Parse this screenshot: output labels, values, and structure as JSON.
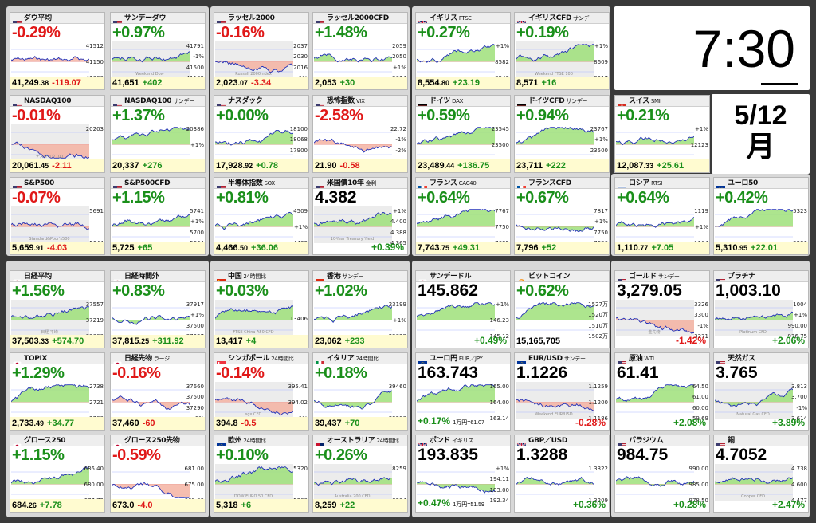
{
  "clock": {
    "time": "7:30",
    "date": "5/12",
    "weekday": "月"
  },
  "colors": {
    "up": "#1a8f1a",
    "down": "#e01818"
  },
  "cards": [
    {
      "id": "dow",
      "flag": "us",
      "name": "ダウ平均",
      "sub": "",
      "pct": "-0.29%",
      "dir": "dn",
      "price": "41,249",
      "dec": ".38",
      "chg": "-119.07",
      "axis": [
        "41512",
        "41150",
        "41000"
      ],
      "wm": ""
    },
    {
      "id": "dowf",
      "flag": "us",
      "name": "サンデーダウ",
      "sub": "",
      "pct": "+0.97%",
      "dir": "up",
      "price": "41,651",
      "dec": "",
      "chg": "+402",
      "axis": [
        "41791",
        "-1%",
        "41500",
        "41102"
      ],
      "wm": "Weekend Dow"
    },
    {
      "id": "rut",
      "flag": "us",
      "name": "ラッセル2000",
      "sub": "",
      "pct": "-0.16%",
      "dir": "dn",
      "price": "2,023",
      ".07": "",
      "dec": ".07",
      "chg": "-3.34",
      "axis": [
        "2037",
        "2030",
        "2016",
        "-1%"
      ],
      "wm": "Russell 2000Index"
    },
    {
      "id": "rutf",
      "flag": "us",
      "name": "ラッセル2000CFD",
      "sub": "",
      "pct": "+1.48%",
      "dir": "up",
      "price": "2,053",
      "dec": "",
      "chg": "+30",
      "axis": [
        "2059",
        "2050",
        "+1%",
        "2014"
      ],
      "wm": ""
    },
    {
      "id": "ftse",
      "flag": "uk",
      "name": "イギリス",
      "sub": "FTSE",
      "pct": "+0.27%",
      "dir": "up",
      "price": "8,554",
      "dec": ".80",
      "chg": "+23.19",
      "axis": [
        "+1%",
        "8582",
        "8543"
      ],
      "wm": ""
    },
    {
      "id": "ftsef",
      "flag": "uk",
      "name": "イギリスCFD",
      "sub": "サンデー",
      "pct": "+0.19%",
      "dir": "up",
      "price": "8,571",
      "dec": "",
      "chg": "+16",
      "axis": [
        "+1%",
        "8609",
        "8517"
      ],
      "wm": "Weekend FTSE 100"
    },
    {
      "id": "ndx",
      "flag": "us",
      "name": "NASDAQ100",
      "sub": "",
      "pct": "-0.01%",
      "dir": "dn",
      "price": "20,061",
      "dec": ".45",
      "chg": "-2.11",
      "axis": [
        "20203",
        "19985"
      ],
      "wm": "ナスダック100"
    },
    {
      "id": "ndxf",
      "flag": "us",
      "name": "NASDAQ100",
      "sub": "サンデー",
      "pct": "+1.37%",
      "dir": "up",
      "price": "20,337",
      "dec": "",
      "chg": "+276",
      "axis": [
        "20386",
        "+1%",
        "19986"
      ],
      "wm": ""
    },
    {
      "id": "nasdaq",
      "flag": "us",
      "name": "ナスダック",
      "sub": "",
      "pct": "+0.00%",
      "dir": "up",
      "price": "17,928",
      "dec": ".92",
      "chg": "+0.78",
      "axis": [
        "18100",
        "18068",
        "17900",
        "17853"
      ],
      "wm": ""
    },
    {
      "id": "vix",
      "flag": "us",
      "name": "恐怖指数",
      "sub": "VIX",
      "pct": "-2.58%",
      "dir": "dn",
      "price": "21.90",
      "dec": "",
      "chg": "-0.58",
      "axis": [
        "22.72",
        "-1%",
        "-2%",
        "21.83"
      ],
      "wm": ""
    },
    {
      "id": "dax",
      "flag": "de",
      "name": "ドイツ",
      "sub": "DAX",
      "pct": "+0.59%",
      "dir": "up",
      "price": "23,489",
      "dec": ".44",
      "chg": "+136.75",
      "axis": [
        "23545",
        "23500",
        "23428"
      ],
      "wm": ""
    },
    {
      "id": "daxf",
      "flag": "de",
      "name": "ドイツCFD",
      "sub": "サンデー",
      "pct": "+0.94%",
      "dir": "up",
      "price": "23,711",
      "dec": "",
      "chg": "+222",
      "axis": [
        "23767",
        "+1%",
        "23500",
        "23416"
      ],
      "wm": ""
    },
    {
      "id": "smi",
      "flag": "ch",
      "name": "スイス",
      "sub": "SMI",
      "pct": "+0.21%",
      "dir": "up",
      "price": "12,087",
      "dec": ".33",
      "chg": "+25.61",
      "axis": [
        "+1%",
        "12123",
        "12054"
      ],
      "wm": ""
    },
    {
      "id": "spx",
      "flag": "us",
      "name": "S&P500",
      "sub": "",
      "pct": "-0.07%",
      "dir": "dn",
      "price": "5,659",
      "dec": ".91",
      "chg": "-4.03",
      "axis": [
        "5691",
        "5644"
      ],
      "wm": "Standard&Poor's500"
    },
    {
      "id": "spxf",
      "flag": "us",
      "name": "S&P500CFD",
      "sub": "",
      "pct": "+1.15%",
      "dir": "up",
      "price": "5,725",
      "dec": "",
      "chg": "+65",
      "axis": [
        "5741",
        "+1%",
        "5700",
        "5644"
      ],
      "wm": ""
    },
    {
      "id": "sox",
      "flag": "us",
      "name": "半導体指数",
      "sub": "SOX",
      "pct": "+0.81%",
      "dir": "up",
      "price": "4,466",
      "dec": ".50",
      "chg": "+36.06",
      "axis": [
        "4509",
        "+1%",
        "4433"
      ],
      "wm": ""
    },
    {
      "id": "us10y",
      "flag": "us",
      "name": "米国債10年",
      "sub": "金利",
      "pct": "",
      "dir": "up",
      "price": "",
      "dec": "",
      "chg": "",
      "big": "4.382",
      "bpct": "+0.39%",
      "axis": [
        "+1%",
        "4.400",
        "4.388",
        "4.365"
      ],
      "wm": "10-Year Treasury Yield"
    },
    {
      "id": "cac",
      "flag": "fr",
      "name": "フランス",
      "sub": "CAC40",
      "pct": "+0.64%",
      "dir": "up",
      "price": "7,743",
      "dec": ".75",
      "chg": "+49.31",
      "axis": [
        "7767",
        "7750",
        "7695"
      ],
      "wm": ""
    },
    {
      "id": "cacf",
      "flag": "fr",
      "name": "フランスCFD",
      "sub": "",
      "pct": "+0.67%",
      "dir": "up",
      "price": "7,796",
      "dec": "",
      "chg": "+52",
      "axis": [
        "7817",
        "+1%",
        "7750",
        "7696"
      ],
      "wm": ""
    },
    {
      "id": "rts",
      "flag": "ru",
      "name": "ロシア",
      "sub": "RTSI",
      "pct": "+0.64%",
      "dir": "up",
      "price": "1,110",
      "dec": ".77",
      "chg": "+7.05",
      "axis": [
        "1119",
        "+1%",
        "1104"
      ],
      "wm": ""
    },
    {
      "id": "sx5e",
      "flag": "eu",
      "name": "ユーロ50",
      "sub": "",
      "pct": "+0.42%",
      "dir": "up",
      "price": "5,310",
      "dec": ".95",
      "chg": "+22.01",
      "axis": [
        "5323",
        "5296"
      ],
      "wm": ""
    },
    {
      "id": "n225",
      "flag": "jp",
      "name": "日経平均",
      "sub": "",
      "pct": "+1.56%",
      "dir": "up",
      "price": "37,503",
      "dec": ".33",
      "chg": "+574.70",
      "axis": [
        "37557",
        "37219",
        "37000"
      ],
      "wm": "日経 平均"
    },
    {
      "id": "n225x",
      "flag": "jp",
      "name": "日経時間外",
      "sub": "",
      "pct": "+0.83%",
      "dir": "up",
      "price": "37,815",
      "dec": ".25",
      "chg": "+311.92",
      "axis": [
        "37917",
        "+1%",
        "37500",
        "37257"
      ],
      "wm": ""
    },
    {
      "id": "cn",
      "flag": "cn",
      "name": "中国",
      "sub": "24時間比",
      "pct": "+0.03%",
      "dir": "up",
      "price": "13,417",
      "dec": "",
      "chg": "+4",
      "axis": [
        "13406"
      ],
      "wm": "FTSE China A50 CFD"
    },
    {
      "id": "hk",
      "flag": "hk",
      "name": "香港",
      "sub": "サンデー",
      "pct": "+1.02%",
      "dir": "up",
      "price": "23,062",
      "dec": "",
      "chg": "+233",
      "axis": [
        "23199",
        "+1%",
        "22829"
      ],
      "wm": ""
    },
    {
      "id": "usdjpyw",
      "flag": "jp",
      "name": "サンデードル",
      "sub": "",
      "pct": "",
      "dir": "up",
      "price": "",
      "dec": "",
      "chg": "",
      "big": "145.862",
      "bpct": "+0.49%",
      "axis": [
        "+1%",
        "146.23",
        "145.12"
      ],
      "wm": ""
    },
    {
      "id": "btc",
      "flag": "btc",
      "name": "ビットコイン",
      "sub": "",
      "pct": "+0.62%",
      "dir": "up",
      "price": "15,165,705",
      "dec": "",
      "chg": "",
      "axis": [
        "1527万",
        "1520万",
        "1510万",
        "1502万"
      ],
      "wm": ""
    },
    {
      "id": "gold",
      "flag": "us",
      "name": "ゴールド",
      "sub": "サンデー",
      "pct": "",
      "dir": "dn",
      "price": "",
      "dec": "",
      "chg": "",
      "big": "3,279.05",
      "bpct": "-1.42%",
      "axis": [
        "3326",
        "3300",
        "-1%",
        "3271"
      ],
      "wm": "金先物"
    },
    {
      "id": "plat",
      "flag": "us",
      "name": "プラチナ",
      "sub": "",
      "pct": "",
      "dir": "up",
      "price": "",
      "dec": "",
      "chg": "",
      "big": "1,003.10",
      "bpct": "+2.06%",
      "axis": [
        "1004",
        "+1%",
        "990.00",
        "976.75"
      ],
      "wm": "Platinum CFD"
    },
    {
      "id": "topix",
      "flag": "jp",
      "name": "TOPIX",
      "sub": "",
      "pct": "+1.29%",
      "dir": "up",
      "price": "2,733",
      "dec": ".49",
      "chg": "+34.77",
      "axis": [
        "2738",
        "2721",
        "2700"
      ],
      "wm": ""
    },
    {
      "id": "n225f",
      "flag": "jp",
      "name": "日経先物",
      "sub": "ラージ",
      "pct": "-0.16%",
      "dir": "dn",
      "price": "37,460",
      "dec": "",
      "chg": "-60",
      "axis": [
        "37660",
        "37500",
        "37290",
        "-1%"
      ],
      "wm": ""
    },
    {
      "id": "sg",
      "flag": "sg",
      "name": "シンガポール",
      "sub": "24時間比",
      "pct": "-0.14%",
      "dir": "dn",
      "price": "394.8",
      "dec": "",
      "chg": "-0.5",
      "axis": [
        "395.41",
        "394.02",
        "-1%"
      ],
      "wm": "sgx CFD"
    },
    {
      "id": "it",
      "flag": "it",
      "name": "イタリア",
      "sub": "24時間比",
      "pct": "+0.18%",
      "dir": "up",
      "price": "39,437",
      "dec": "",
      "chg": "+70",
      "axis": [
        "39460",
        "39290"
      ],
      "wm": ""
    },
    {
      "id": "eurjpy",
      "flag": "eu",
      "name": "ユーロ円",
      "sub": "EUR／JPY",
      "pct": "",
      "dir": "up",
      "price": "",
      "dec": "",
      "chg": "",
      "big": "163.743",
      "bpct": "+0.17%",
      "bsub": "1万円=61.07",
      "axis": [
        "165.00",
        "164.00",
        "163.14"
      ],
      "wm": ""
    },
    {
      "id": "eurusd",
      "flag": "eu",
      "name": "EUR/USD",
      "sub": "サンデー",
      "pct": "",
      "dir": "dn",
      "price": "",
      "dec": "",
      "chg": "",
      "big": "1.1226",
      "bpct": "-0.28%",
      "axis": [
        "1.1259",
        "1.1200",
        "1.1186"
      ],
      "wm": "Weekend EUR/USD"
    },
    {
      "id": "wti",
      "flag": "us",
      "name": "原油",
      "sub": "WTI",
      "pct": "",
      "dir": "up",
      "price": "",
      "dec": "",
      "chg": "",
      "big": "61.41",
      "bpct": "+2.08%",
      "axis": [
        "64.50",
        "61.00",
        "60.00",
        "59.69"
      ],
      "wm": ""
    },
    {
      "id": "ng",
      "flag": "us",
      "name": "天然ガス",
      "sub": "",
      "pct": "",
      "dir": "up",
      "price": "",
      "dec": "",
      "chg": "",
      "big": "3.765",
      "bpct": "+3.89%",
      "axis": [
        "3.813",
        "3.700",
        "-1%",
        "3.614"
      ],
      "wm": "Natural Gas CFD"
    },
    {
      "id": "g250",
      "flag": "jp",
      "name": "グロース250",
      "sub": "",
      "pct": "+1.15%",
      "dir": "up",
      "price": "684",
      "dec": ".26",
      "chg": "+7.78",
      "axis": [
        "686.40",
        "680.00",
        "677.72"
      ],
      "wm": ""
    },
    {
      "id": "g250f",
      "flag": "jp",
      "name": "グロース250先物",
      "sub": "",
      "pct": "-0.59%",
      "dir": "dn",
      "price": "673.0",
      "dec": "",
      "chg": "-4.0",
      "axis": [
        "681.00",
        "675.00",
        "669.00"
      ],
      "wm": ""
    },
    {
      "id": "eu",
      "flag": "eu",
      "name": "欧州",
      "sub": "24時間比",
      "pct": "+0.10%",
      "dir": "up",
      "price": "5,318",
      "dec": "",
      "chg": "+6",
      "axis": [
        "5320",
        "5300"
      ],
      "wm": "DOW EURO 50 CFD"
    },
    {
      "id": "au",
      "flag": "au",
      "name": "オーストラリア",
      "sub": "24時間比",
      "pct": "+0.26%",
      "dir": "up",
      "price": "8,259",
      "dec": "",
      "chg": "+22",
      "axis": [
        "8259",
        "8234"
      ],
      "wm": "Australia 200 CFD"
    },
    {
      "id": "gbpjpy",
      "flag": "uk",
      "name": "ポンド",
      "sub": "イギリス",
      "pct": "",
      "dir": "up",
      "price": "",
      "dec": "",
      "chg": "",
      "big": "193.835",
      "bpct": "+0.47%",
      "bsub": "1万円=51.59",
      "axis": [
        "+1%",
        "194.11",
        "193.00",
        "192.34"
      ],
      "wm": ""
    },
    {
      "id": "gbpusd",
      "flag": "uk",
      "name": "GBP／USD",
      "sub": "",
      "pct": "",
      "dir": "up",
      "price": "",
      "dec": "",
      "chg": "",
      "big": "1.3288",
      "bpct": "+0.36%",
      "axis": [
        "1.3322",
        "1.3209"
      ],
      "wm": ""
    },
    {
      "id": "pall",
      "flag": "us",
      "name": "パラジウム",
      "sub": "",
      "pct": "",
      "dir": "up",
      "price": "",
      "dec": "",
      "chg": "",
      "big": "984.75",
      "bpct": "+0.28%",
      "axis": [
        "990.00",
        "985.00",
        "978.50"
      ],
      "wm": ""
    },
    {
      "id": "copper",
      "flag": "us",
      "name": "銅",
      "sub": "",
      "pct": "",
      "dir": "up",
      "price": "",
      "dec": "",
      "chg": "",
      "big": "4.7052",
      "bpct": "+2.47%",
      "axis": [
        "4.738",
        "4.600",
        "4.477"
      ],
      "wm": "Copper CFD"
    }
  ]
}
